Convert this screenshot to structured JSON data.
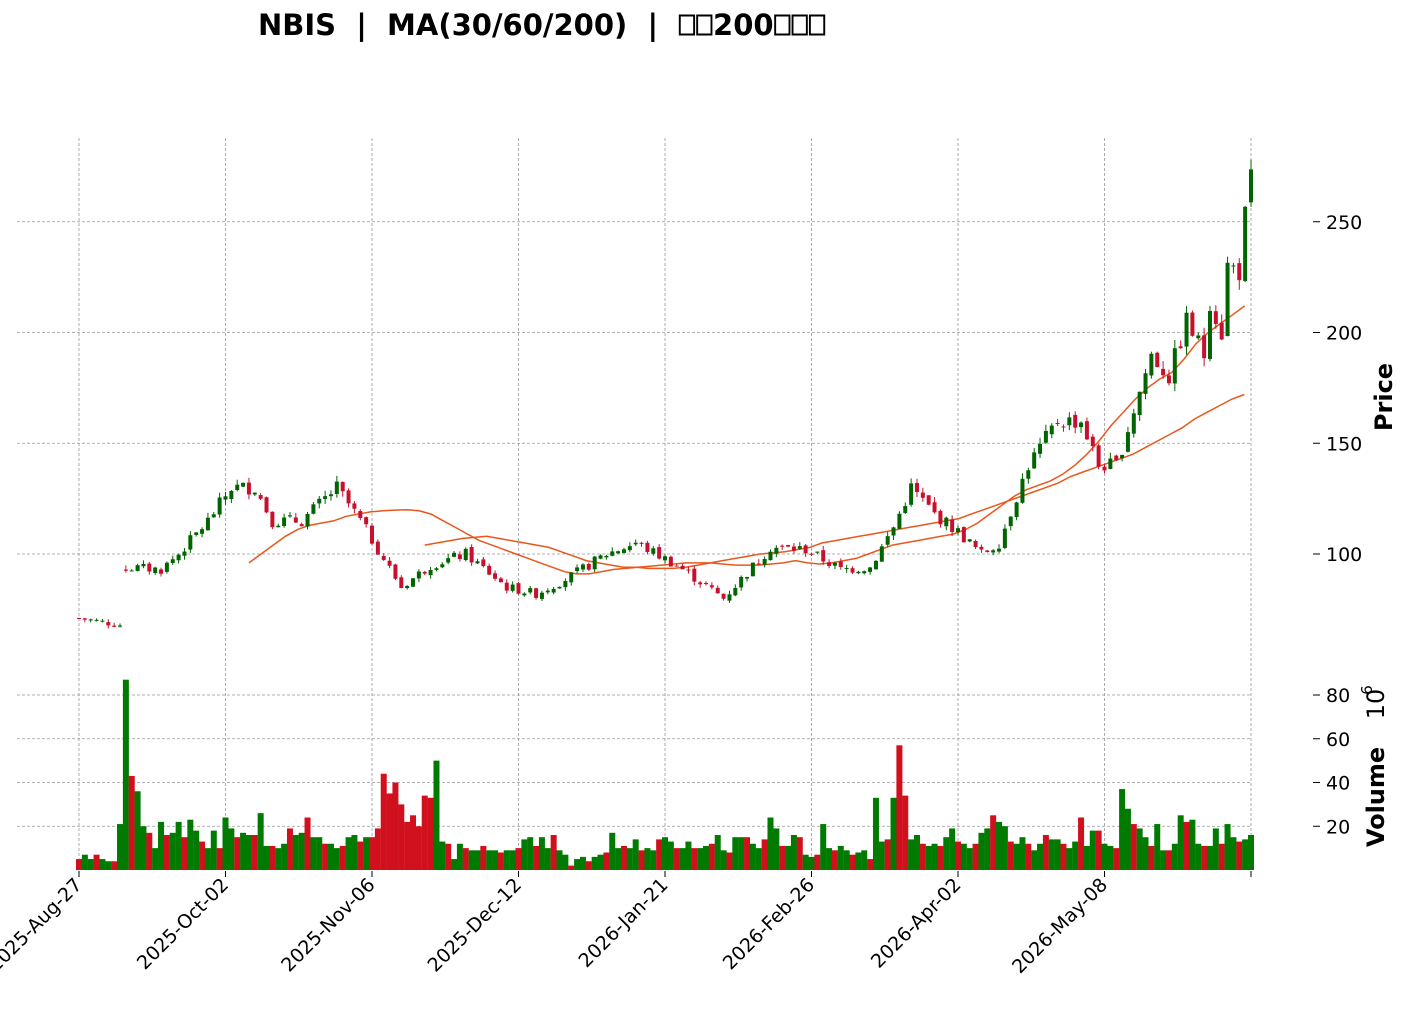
{
  "chart_data": {
    "type": "candlestick",
    "title": "NBIS  |  MA(30/60/200)  |  ⎕⎕200⎕⎕⎕",
    "ylabel": "Price",
    "ylabel_lower": "Volume  $10^{6}$",
    "volume_exponent_label": "10",
    "volume_exponent_power": "6",
    "ylim": [
      52,
      292
    ],
    "volume_ylim": [
      0,
      90
    ],
    "price_ticks": [
      100,
      150,
      200,
      250
    ],
    "volume_ticks": [
      20,
      40,
      60,
      80
    ],
    "x_tick_labels": [
      "2025-Aug-27",
      "2025-Oct-02",
      "2025-Nov-06",
      "2025-Dec-12",
      "2026-Jan-21",
      "2026-Feb-26",
      "2026-Apr-02",
      "2026-May-08"
    ],
    "x_tick_index": [
      0,
      25,
      50,
      75,
      100,
      125,
      150,
      175
    ],
    "grid": true,
    "colors": {
      "up": "#006400",
      "down": "#c8102e",
      "up_vol": "#007a00",
      "down_vol": "#d0101c",
      "ma": "#e8581c",
      "grid": "#999999"
    },
    "series": [
      {
        "name": "MA30",
        "type": "line",
        "start_index": 29,
        "values": [
          96,
          100,
          104,
          108,
          111,
          113,
          114,
          115,
          117,
          118,
          119,
          119.5,
          119.8,
          120,
          119.5,
          118,
          115,
          112,
          109,
          106,
          104,
          102,
          100,
          98,
          96,
          94,
          92,
          91,
          91,
          92,
          93,
          93.5,
          94,
          94.5,
          95,
          95.5,
          96,
          96,
          96,
          95.5,
          95,
          95,
          95,
          95.5,
          96,
          97,
          96,
          95.5,
          96,
          97,
          98,
          100,
          102,
          104,
          105,
          106,
          107,
          108,
          109,
          111,
          114,
          118,
          122,
          126,
          129,
          131,
          133,
          136,
          140,
          145,
          151,
          158,
          164,
          170,
          175,
          179,
          182,
          188,
          195,
          200,
          204,
          208,
          212
        ]
      },
      {
        "name": "MA60",
        "type": "line",
        "start_index": 59,
        "values": [
          104,
          105,
          106,
          107,
          107.5,
          108,
          107,
          106,
          105,
          104,
          103,
          101,
          99,
          97,
          96,
          95,
          94,
          94,
          93.5,
          93.5,
          93.5,
          94,
          95,
          96,
          97,
          98,
          99,
          100,
          100.5,
          101,
          102,
          103,
          105,
          106,
          107,
          108,
          109,
          110,
          111,
          112,
          113,
          114,
          115,
          116,
          118,
          120,
          122,
          124,
          126,
          128,
          130,
          132,
          135,
          137,
          139,
          141,
          143,
          145,
          148,
          151,
          154,
          157,
          161,
          164,
          167,
          170,
          172
        ]
      }
    ],
    "ohlc_days": 200,
    "ohlc_seed": 7,
    "ohlc_anchors": [
      [
        0,
        71
      ],
      [
        7,
        68
      ],
      [
        8,
        94
      ],
      [
        14,
        93
      ],
      [
        17,
        100
      ],
      [
        22,
        115
      ],
      [
        26,
        130
      ],
      [
        30,
        130
      ],
      [
        33,
        115
      ],
      [
        38,
        115
      ],
      [
        44,
        130
      ],
      [
        48,
        115
      ],
      [
        55,
        85
      ],
      [
        60,
        95
      ],
      [
        66,
        100
      ],
      [
        73,
        85
      ],
      [
        78,
        82
      ],
      [
        84,
        90
      ],
      [
        90,
        100
      ],
      [
        95,
        105
      ],
      [
        102,
        95
      ],
      [
        110,
        80
      ],
      [
        118,
        103
      ],
      [
        124,
        102
      ],
      [
        130,
        93
      ],
      [
        135,
        94
      ],
      [
        139,
        112
      ],
      [
        142,
        130
      ],
      [
        146,
        118
      ],
      [
        150,
        110
      ],
      [
        154,
        100
      ],
      [
        157,
        105
      ],
      [
        162,
        140
      ],
      [
        167,
        160
      ],
      [
        171,
        160
      ],
      [
        174,
        140
      ],
      [
        177,
        140
      ],
      [
        180,
        165
      ],
      [
        183,
        190
      ],
      [
        186,
        180
      ],
      [
        189,
        205
      ],
      [
        192,
        190
      ],
      [
        193,
        215
      ],
      [
        195,
        200
      ],
      [
        196,
        230
      ],
      [
        198,
        228
      ],
      [
        199,
        252
      ],
      [
        200,
        268
      ],
      [
        202,
        230
      ],
      [
        204,
        225
      ],
      [
        205,
        215
      ],
      [
        206,
        224
      ],
      [
        207,
        232
      ]
    ],
    "volume_values": [
      5,
      7,
      5,
      7,
      5,
      4,
      4,
      21,
      87,
      43,
      36,
      20,
      17,
      10,
      22,
      16,
      17,
      22,
      15,
      23,
      18,
      13,
      10,
      18,
      10,
      24,
      19,
      15,
      17,
      16,
      16,
      26,
      11,
      11,
      10,
      12,
      19,
      16,
      17,
      24,
      15,
      15,
      12,
      12,
      10,
      11,
      15,
      16,
      13,
      15,
      15,
      19,
      44,
      35,
      40,
      30,
      22,
      25,
      20,
      34,
      33,
      50,
      13,
      12,
      5,
      12,
      10,
      9,
      9,
      11,
      9,
      9,
      8,
      9,
      9,
      10,
      14,
      15,
      11,
      15,
      10,
      16,
      9,
      7,
      2,
      5,
      6,
      4,
      6,
      7,
      8,
      17,
      10,
      11,
      10,
      14,
      9,
      10,
      9,
      14,
      15,
      13,
      10,
      10,
      13,
      10,
      10,
      11,
      12,
      16,
      9,
      8,
      15,
      15,
      15,
      12,
      10,
      14,
      24,
      19,
      11,
      11,
      16,
      15,
      7,
      6,
      7,
      21,
      10,
      9,
      11,
      9,
      7,
      8,
      9,
      5,
      33,
      13,
      14,
      33,
      57,
      34,
      14,
      16,
      12,
      11,
      12,
      11,
      15,
      19,
      13,
      12,
      10,
      12,
      17,
      19,
      25,
      22,
      20,
      13,
      12,
      15,
      12,
      9,
      12,
      16,
      14,
      14,
      12,
      10,
      13,
      24,
      11,
      18,
      18,
      12,
      11,
      10,
      37,
      28,
      21,
      19,
      15,
      11,
      21,
      9,
      9,
      12,
      25,
      22,
      23,
      12,
      11,
      11,
      19,
      12,
      21,
      15,
      13,
      14,
      16
    ]
  }
}
